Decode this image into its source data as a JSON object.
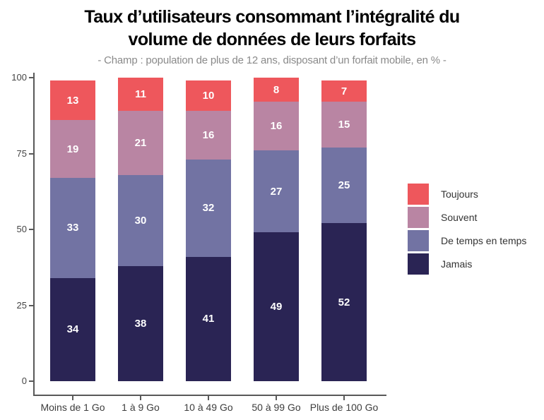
{
  "title": {
    "line1": "Taux d’utilisateurs consommant l’intégralité du",
    "line2": "volume de données de leurs forfaits"
  },
  "subtitle": "- Champ : population de plus de 12 ans, disposant d’un forfait mobile, en % -",
  "chart_data": {
    "type": "bar",
    "stacked": true,
    "orientation": "vertical",
    "title": "Taux d’utilisateurs consommant l’intégralité du volume de données de leurs forfaits",
    "subtitle": "- Champ : population de plus de 12 ans, disposant d’un forfait mobile, en % -",
    "unit": "%",
    "categories": [
      "Moins de 1 Go",
      "1 à 9 Go",
      "10 à 49 Go",
      "50 à 99 Go",
      "Plus de 100 Go"
    ],
    "series": [
      {
        "name": "Jamais",
        "color": "#2A2454",
        "values": [
          34,
          38,
          41,
          49,
          52
        ]
      },
      {
        "name": "De temps en temps",
        "color": "#7273A3",
        "values": [
          33,
          30,
          32,
          27,
          25
        ]
      },
      {
        "name": "Souvent",
        "color": "#B985A3",
        "values": [
          19,
          21,
          16,
          16,
          15
        ]
      },
      {
        "name": "Toujours",
        "color": "#EE575C",
        "values": [
          13,
          11,
          10,
          8,
          7
        ]
      }
    ],
    "legend": {
      "position": "right",
      "order": [
        "Toujours",
        "Souvent",
        "De temps en temps",
        "Jamais"
      ]
    },
    "ylim": [
      0,
      100
    ],
    "yticks": [
      0,
      25,
      50,
      75,
      100
    ],
    "grid": false,
    "value_labels": "inside-center-white"
  },
  "colors": {
    "axis": "#595959",
    "tick_label": "#454545",
    "x_label": "#3d3d3d",
    "title": "#000000",
    "subtitle": "#8a8a8a",
    "bar_label": "#ffffff",
    "background": "#ffffff"
  }
}
